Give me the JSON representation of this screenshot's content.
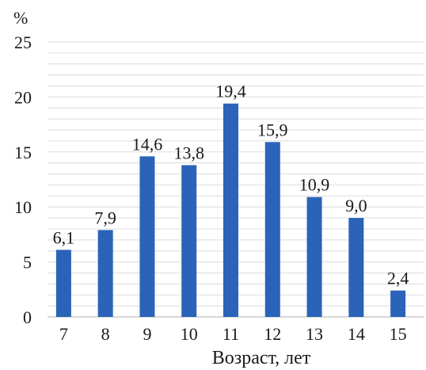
{
  "chart_data": {
    "type": "bar",
    "categories": [
      "7",
      "8",
      "9",
      "10",
      "11",
      "12",
      "13",
      "14",
      "15"
    ],
    "values": [
      6.1,
      7.9,
      14.6,
      13.8,
      19.4,
      15.9,
      10.9,
      9.0,
      2.4
    ],
    "data_labels": [
      "6,1",
      "7,9",
      "14,6",
      "13,8",
      "19,4",
      "15,9",
      "10,9",
      "9,0",
      "2,4"
    ],
    "title": "",
    "xlabel": "Возраст, лет",
    "ylabel": "%",
    "ylim": [
      0,
      25
    ],
    "yticks": [
      "0",
      "5",
      "10",
      "15",
      "20",
      "25"
    ],
    "yticks_values": [
      0,
      5,
      10,
      15,
      20,
      25
    ],
    "grid": true,
    "legend": "none",
    "bar_color": "#2a63b8"
  }
}
